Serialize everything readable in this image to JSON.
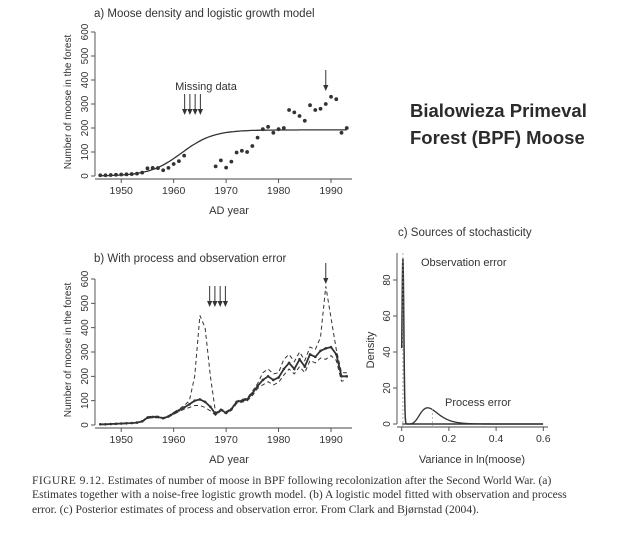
{
  "side_title": {
    "line1": "Bialowieza Primeval",
    "line2": "Forest (BPF) Moose"
  },
  "caption": {
    "lead": "FIGURE 9.12.",
    "text": " Estimates of number of moose in BPF following recolonization after the Second World War. (a) Estimates together with a noise-free logistic growth model. (b) A logistic model fitted with observation and process error. (c) Posterior estimates of process and observation error. From Clark and Bjørnstad (2004)."
  },
  "colors": {
    "ink": "#333333",
    "axis": "#444444"
  },
  "chart_data": [
    {
      "panel": "a",
      "type": "scatter",
      "title": "a) Moose density and logistic growth model",
      "xlabel": "AD year",
      "ylabel": "Number of moose in the forest",
      "xlim": [
        1945,
        1994
      ],
      "ylim": [
        0,
        600
      ],
      "xticks": [
        1950,
        1960,
        1970,
        1980,
        1990
      ],
      "yticks": [
        0,
        100,
        200,
        300,
        400,
        500,
        600
      ],
      "annotation": "Missing data",
      "missing_years": [
        1964,
        1965,
        1966,
        1967
      ],
      "highlight_year": 1989,
      "points": [
        [
          1946,
          3
        ],
        [
          1947,
          3
        ],
        [
          1948,
          4
        ],
        [
          1949,
          5
        ],
        [
          1950,
          6
        ],
        [
          1951,
          7
        ],
        [
          1952,
          8
        ],
        [
          1953,
          10
        ],
        [
          1954,
          14
        ],
        [
          1955,
          32
        ],
        [
          1956,
          34
        ],
        [
          1957,
          33
        ],
        [
          1958,
          24
        ],
        [
          1959,
          34
        ],
        [
          1960,
          50
        ],
        [
          1961,
          62
        ],
        [
          1962,
          85
        ],
        [
          1968,
          40
        ],
        [
          1969,
          65
        ],
        [
          1970,
          35
        ],
        [
          1971,
          60
        ],
        [
          1972,
          98
        ],
        [
          1973,
          105
        ],
        [
          1974,
          100
        ],
        [
          1975,
          125
        ],
        [
          1976,
          160
        ],
        [
          1977,
          195
        ],
        [
          1978,
          205
        ],
        [
          1979,
          180
        ],
        [
          1980,
          195
        ],
        [
          1981,
          200
        ],
        [
          1982,
          275
        ],
        [
          1983,
          265
        ],
        [
          1984,
          250
        ],
        [
          1985,
          230
        ],
        [
          1986,
          295
        ],
        [
          1987,
          275
        ],
        [
          1988,
          280
        ],
        [
          1989,
          300
        ],
        [
          1990,
          330
        ],
        [
          1991,
          320
        ],
        [
          1992,
          180
        ],
        [
          1993,
          200
        ]
      ],
      "model": {
        "name": "logistic",
        "K": 192,
        "r": 0.33,
        "t0": 1961.5
      }
    },
    {
      "panel": "b",
      "type": "line",
      "title": "b) With process and observation error",
      "xlabel": "AD year",
      "ylabel": "Number of moose in the forest",
      "xlim": [
        1945,
        1994
      ],
      "ylim": [
        0,
        600
      ],
      "xticks": [
        1950,
        1960,
        1970,
        1980,
        1990
      ],
      "yticks": [
        0,
        100,
        200,
        300,
        400,
        500,
        600
      ],
      "missing_years": [
        1964,
        1965,
        1966,
        1967
      ],
      "highlight_year": 1989,
      "x": [
        1946,
        1947,
        1948,
        1949,
        1950,
        1951,
        1952,
        1953,
        1954,
        1955,
        1956,
        1957,
        1958,
        1959,
        1960,
        1961,
        1962,
        1963,
        1964,
        1965,
        1966,
        1967,
        1968,
        1969,
        1970,
        1971,
        1972,
        1973,
        1974,
        1975,
        1976,
        1977,
        1978,
        1979,
        1980,
        1981,
        1982,
        1983,
        1984,
        1985,
        1986,
        1987,
        1988,
        1989,
        1990,
        1991,
        1992,
        1993
      ],
      "series": [
        {
          "style": "solid",
          "values": [
            3,
            3,
            4,
            5,
            6,
            7,
            8,
            10,
            15,
            30,
            33,
            33,
            28,
            35,
            48,
            60,
            72,
            85,
            100,
            105,
            95,
            75,
            45,
            62,
            50,
            65,
            95,
            100,
            105,
            130,
            160,
            185,
            200,
            185,
            195,
            230,
            255,
            230,
            270,
            240,
            290,
            280,
            305,
            315,
            320,
            290,
            200,
            200
          ]
        },
        {
          "style": "dashed",
          "values": [
            3,
            3,
            4,
            5,
            6,
            7,
            9,
            11,
            16,
            34,
            36,
            36,
            30,
            38,
            52,
            65,
            80,
            100,
            200,
            450,
            400,
            200,
            50,
            66,
            55,
            68,
            98,
            105,
            110,
            138,
            170,
            215,
            230,
            210,
            215,
            270,
            290,
            260,
            300,
            265,
            320,
            310,
            360,
            570,
            440,
            310,
            215,
            215
          ]
        },
        {
          "style": "dashed",
          "values": [
            2,
            2,
            3,
            4,
            5,
            6,
            7,
            9,
            13,
            27,
            30,
            30,
            25,
            32,
            44,
            55,
            65,
            72,
            80,
            80,
            72,
            58,
            40,
            58,
            46,
            60,
            88,
            94,
            99,
            120,
            150,
            165,
            178,
            165,
            175,
            205,
            230,
            210,
            240,
            215,
            265,
            255,
            275,
            270,
            285,
            265,
            180,
            185
          ]
        }
      ]
    },
    {
      "panel": "c",
      "type": "line",
      "title": "c) Sources of stochasticity",
      "xlabel": "Variance in ln(moose)",
      "ylabel": "Density",
      "xlim": [
        -0.02,
        0.62
      ],
      "ylim": [
        0,
        95
      ],
      "xticks": [
        0,
        0.2,
        0.4,
        0.6
      ],
      "xtick_labels": [
        "0",
        "0.2",
        "0.4",
        "0.6"
      ],
      "yticks": [
        0,
        20,
        40,
        60,
        80
      ],
      "series": [
        {
          "name": "Observation error",
          "mode": 0.005,
          "sigma": 0.004,
          "peak": 92,
          "style": "solid"
        },
        {
          "name": "Process error",
          "mode": 0.11,
          "sigma": 0.35,
          "peak": 9,
          "style": "solid",
          "vline": 0.13
        }
      ]
    }
  ]
}
